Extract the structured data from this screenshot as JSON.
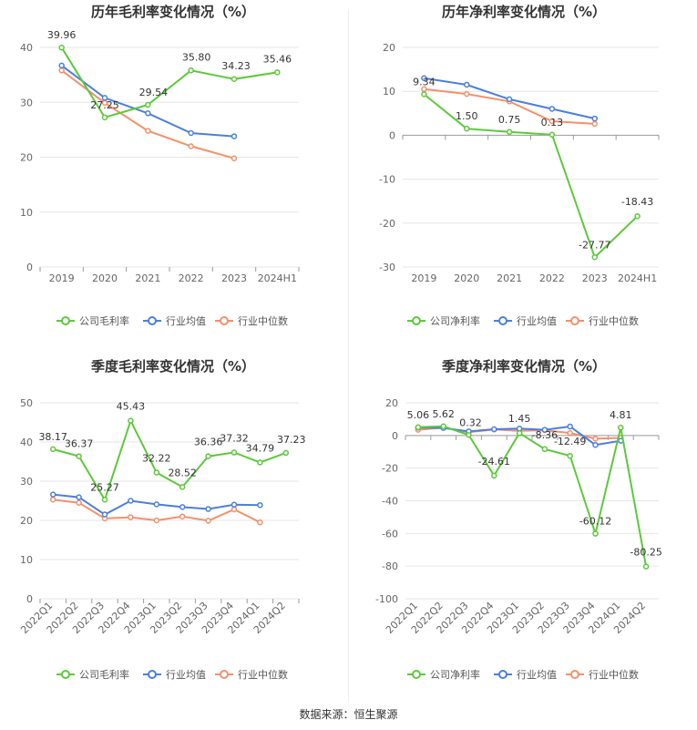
{
  "source_label": "数据来源：恒生聚源",
  "colors": {
    "company": "#5cc93b",
    "avg": "#4a7fe0",
    "median": "#f5906a"
  },
  "chart_data": [
    {
      "type": "line",
      "title": "历年毛利率变化情况（%）",
      "categories": [
        "2019",
        "2020",
        "2021",
        "2022",
        "2023",
        "2024H1"
      ],
      "ylim": [
        0,
        40
      ],
      "yticks": [
        0,
        10,
        20,
        30,
        40
      ],
      "grid": true,
      "legend_position": "bottom",
      "series": [
        {
          "name": "公司毛利率",
          "values": [
            39.96,
            27.25,
            29.54,
            35.8,
            34.23,
            35.46
          ],
          "labels": [
            "39.96",
            "27.25",
            "29.54",
            "35.80",
            "34.23",
            "35.46"
          ]
        },
        {
          "name": "行业均值",
          "values": [
            36.7,
            30.8,
            28.0,
            24.4,
            23.8,
            null
          ]
        },
        {
          "name": "行业中位数",
          "values": [
            35.8,
            29.9,
            24.8,
            22.0,
            19.8,
            null
          ]
        }
      ]
    },
    {
      "type": "line",
      "title": "历年净利率变化情况（%）",
      "categories": [
        "2019",
        "2020",
        "2021",
        "2022",
        "2023",
        "2024H1"
      ],
      "ylim": [
        -30,
        20
      ],
      "yticks": [
        -30,
        -20,
        -10,
        0,
        10,
        20
      ],
      "grid": true,
      "legend_position": "bottom",
      "series": [
        {
          "name": "公司净利率",
          "values": [
            9.34,
            1.5,
            0.75,
            0.13,
            -27.77,
            -18.43
          ],
          "labels": [
            "9.34",
            "1.50",
            "0.75",
            "0.13",
            "-27.77",
            "-18.43"
          ]
        },
        {
          "name": "行业均值",
          "values": [
            13.0,
            11.5,
            8.2,
            6.0,
            3.8,
            null
          ]
        },
        {
          "name": "行业中位数",
          "values": [
            10.5,
            9.4,
            7.7,
            3.2,
            2.6,
            null
          ]
        }
      ]
    },
    {
      "type": "line",
      "title": "季度毛利率变化情况（%）",
      "categories": [
        "2022Q1",
        "2022Q2",
        "2022Q3",
        "2022Q4",
        "2023Q1",
        "2023Q2",
        "2023Q3",
        "2023Q4",
        "2024Q1",
        "2024Q2"
      ],
      "ylim": [
        0,
        50
      ],
      "yticks": [
        0,
        10,
        20,
        30,
        40,
        50
      ],
      "grid": true,
      "legend_position": "bottom",
      "series": [
        {
          "name": "公司毛利率",
          "values": [
            38.17,
            36.37,
            25.27,
            45.43,
            32.22,
            28.52,
            36.36,
            37.32,
            34.79,
            37.23
          ],
          "labels": [
            "38.17",
            "36.37",
            "25.27",
            "45.43",
            "32.22",
            "28.52",
            "36.36",
            "37.32",
            "34.79",
            "37.23"
          ]
        },
        {
          "name": "行业均值",
          "values": [
            26.6,
            25.9,
            21.5,
            25.0,
            24.1,
            23.4,
            22.9,
            24.0,
            23.9,
            null
          ]
        },
        {
          "name": "行业中位数",
          "values": [
            25.3,
            24.5,
            20.5,
            20.8,
            20.0,
            21.0,
            19.9,
            22.8,
            19.5,
            null
          ]
        }
      ]
    },
    {
      "type": "line",
      "title": "季度净利率变化情况（%）",
      "categories": [
        "2022Q1",
        "2022Q2",
        "2022Q3",
        "2022Q4",
        "2023Q1",
        "2023Q2",
        "2023Q3",
        "2023Q4",
        "2024Q1",
        "2024Q2"
      ],
      "ylim": [
        -100,
        20
      ],
      "yticks": [
        -100,
        -80,
        -60,
        -40,
        -20,
        0,
        20
      ],
      "grid": true,
      "legend_position": "bottom",
      "series": [
        {
          "name": "公司净利率",
          "values": [
            5.06,
            5.62,
            0.32,
            -24.61,
            1.45,
            -8.36,
            -12.49,
            -60.12,
            4.81,
            -80.25
          ],
          "labels": [
            "5.06",
            "5.62",
            "0.32",
            "-24.61",
            "1.45",
            "-8.36",
            "-12.49",
            "-60.12",
            "4.81",
            "-80.25"
          ]
        },
        {
          "name": "行业均值",
          "values": [
            4.8,
            4.6,
            2.5,
            3.8,
            4.2,
            3.5,
            5.5,
            -5.8,
            -3.2,
            null
          ]
        },
        {
          "name": "行业中位数",
          "values": [
            3.5,
            4.8,
            2.0,
            3.7,
            2.8,
            3.2,
            1.5,
            -2.0,
            -1.5,
            null
          ]
        }
      ]
    }
  ]
}
